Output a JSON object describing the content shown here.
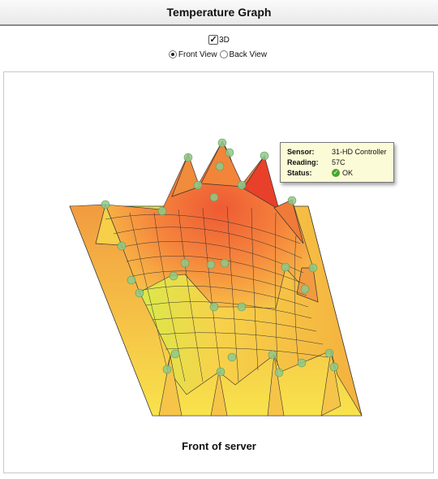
{
  "header": {
    "title": "Temperature Graph"
  },
  "controls": {
    "three_d_label": "3D",
    "three_d_checked": true,
    "views": [
      {
        "label": "Front View",
        "selected": true
      },
      {
        "label": "Back View",
        "selected": false
      }
    ]
  },
  "tooltip": {
    "sensor_label": "Sensor:",
    "sensor_value": "31-HD Controller",
    "reading_label": "Reading:",
    "reading_value": "57C",
    "status_label": "Status:",
    "status_value": "OK"
  },
  "caption": "Front of server",
  "colors": {
    "hot": "#e8402a",
    "warm": "#f48a3e",
    "mild": "#f7d24a",
    "cool": "#bfe84a",
    "cold": "#4cd84c",
    "sensor": "#8ec98a"
  }
}
